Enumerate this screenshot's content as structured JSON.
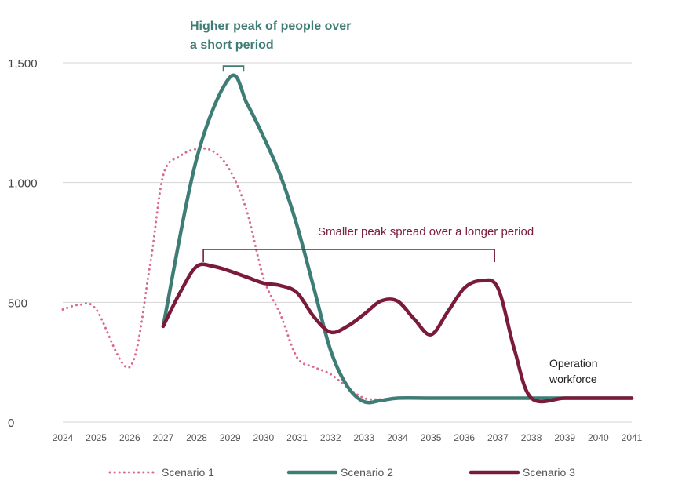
{
  "chart_data": {
    "type": "line",
    "title": "",
    "xlabel": "",
    "ylabel": "",
    "x": [
      2024,
      2025,
      2026,
      2027,
      2028,
      2029,
      2030,
      2031,
      2032,
      2033,
      2034,
      2035,
      2036,
      2037,
      2038,
      2039,
      2040,
      2041
    ],
    "x_tick_labels": [
      "2024",
      "2025",
      "2026",
      "2027",
      "2028",
      "2029",
      "2030",
      "2031",
      "2032",
      "2033",
      "2034",
      "2035",
      "2036",
      "2037",
      "2038",
      "2039",
      "2040",
      "2041"
    ],
    "xlim": [
      2024,
      2041
    ],
    "ylim": [
      0,
      1500
    ],
    "y_ticks": [
      0,
      500,
      1000,
      1500
    ],
    "y_tick_labels": [
      "0",
      "500",
      "1,000",
      "1,500"
    ],
    "grid": "horizontal",
    "legend_position": "bottom",
    "series": [
      {
        "name": "Scenario 1",
        "color": "#d96b8e",
        "style": "dotted",
        "points": [
          [
            2024,
            470
          ],
          [
            2024.5,
            490
          ],
          [
            2025,
            470
          ],
          [
            2026,
            230
          ],
          [
            2026.6,
            650
          ],
          [
            2027,
            1030
          ],
          [
            2027.5,
            1110
          ],
          [
            2028,
            1140
          ],
          [
            2028.5,
            1130
          ],
          [
            2029,
            1050
          ],
          [
            2029.5,
            880
          ],
          [
            2030,
            600
          ],
          [
            2030.5,
            450
          ],
          [
            2031,
            270
          ],
          [
            2031.5,
            230
          ],
          [
            2032,
            200
          ],
          [
            2032.5,
            145
          ],
          [
            2033,
            100
          ],
          [
            2033.5,
            95
          ],
          [
            2034,
            100
          ]
        ]
      },
      {
        "name": "Scenario 2",
        "color": "#3e7d76",
        "style": "solid",
        "points": [
          [
            2027,
            400
          ],
          [
            2028,
            1100
          ],
          [
            2029,
            1440
          ],
          [
            2029.5,
            1330
          ],
          [
            2030,
            1190
          ],
          [
            2030.5,
            1030
          ],
          [
            2031,
            820
          ],
          [
            2031.5,
            560
          ],
          [
            2032,
            300
          ],
          [
            2032.5,
            150
          ],
          [
            2033,
            85
          ],
          [
            2033.5,
            90
          ],
          [
            2034,
            100
          ],
          [
            2035,
            100
          ],
          [
            2036,
            100
          ],
          [
            2037,
            100
          ],
          [
            2038,
            100
          ],
          [
            2039,
            100
          ],
          [
            2040,
            100
          ],
          [
            2041,
            100
          ]
        ]
      },
      {
        "name": "Scenario 3",
        "color": "#7a1b3a",
        "style": "solid",
        "points": [
          [
            2027,
            400
          ],
          [
            2027.5,
            540
          ],
          [
            2028,
            650
          ],
          [
            2028.5,
            650
          ],
          [
            2029,
            630
          ],
          [
            2029.5,
            605
          ],
          [
            2030,
            580
          ],
          [
            2030.5,
            570
          ],
          [
            2031,
            540
          ],
          [
            2031.5,
            440
          ],
          [
            2032,
            375
          ],
          [
            2032.5,
            400
          ],
          [
            2033,
            450
          ],
          [
            2033.5,
            505
          ],
          [
            2034,
            505
          ],
          [
            2034.5,
            430
          ],
          [
            2035,
            365
          ],
          [
            2035.5,
            460
          ],
          [
            2036,
            560
          ],
          [
            2036.5,
            590
          ],
          [
            2037,
            560
          ],
          [
            2037.5,
            300
          ],
          [
            2038,
            100
          ],
          [
            2039,
            100
          ],
          [
            2040,
            100
          ],
          [
            2041,
            100
          ]
        ]
      }
    ],
    "annotations": {
      "higher_peak": {
        "text_lines": [
          "Higher peak of people over",
          "a short period"
        ],
        "color": "#3e7d76",
        "x_range": [
          2028.8,
          2029.4
        ],
        "y": 1460
      },
      "smaller_peak": {
        "text": "Smaller peak spread over a longer period",
        "color": "#7a1b3a",
        "x_range": [
          2028.2,
          2036.9
        ],
        "y": 720
      },
      "operation_workforce": {
        "text_lines": [
          "Operation",
          "workforce"
        ],
        "color": "#222222"
      }
    }
  }
}
